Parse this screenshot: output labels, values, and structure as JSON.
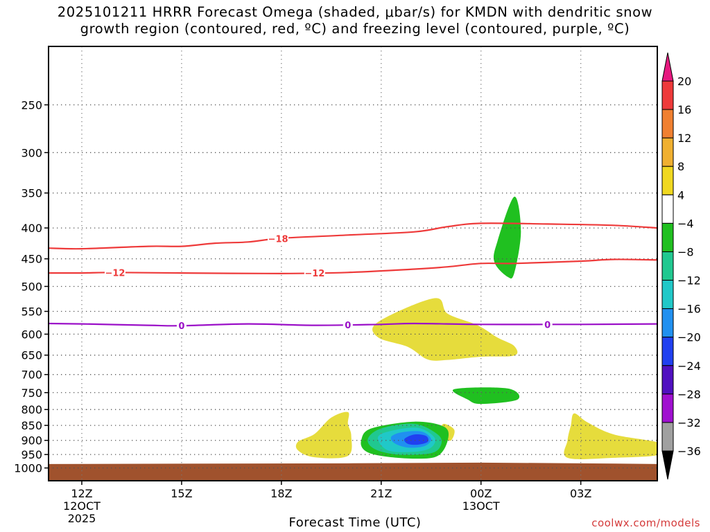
{
  "title_line1": "2025101211 HRRR Forecast Omega (shaded, μbar/s) for KMDN with dendritic snow",
  "title_line2": "growth region (contoured, red, ºC) and freezing level (contoured, purple, ºC)",
  "credit": "coolwx.com/models",
  "chart_data": {
    "type": "heatmap",
    "title": "2025101211 HRRR Forecast Omega (shaded, μbar/s) for KMDN with dendritic snow growth region (contoured, red, ºC) and freezing level (contoured, purple, ºC)",
    "xlabel": "Forecast Time (UTC)",
    "ylabel": "",
    "y_scale": "log-pressure (inverted)",
    "xlim_hours": [
      11.0,
      29.3
    ],
    "ylim_hpa": [
      1050,
      200
    ],
    "grid": true,
    "x_ticks": [
      {
        "hour": 12,
        "line1": "12Z",
        "line2": "12OCT",
        "line3": "2025"
      },
      {
        "hour": 15,
        "line1": "15Z",
        "line2": "",
        "line3": ""
      },
      {
        "hour": 18,
        "line1": "18Z",
        "line2": "",
        "line3": ""
      },
      {
        "hour": 21,
        "line1": "21Z",
        "line2": "",
        "line3": ""
      },
      {
        "hour": 24,
        "line1": "00Z",
        "line2": "13OCT",
        "line3": ""
      },
      {
        "hour": 27,
        "line1": "03Z",
        "line2": "",
        "line3": ""
      }
    ],
    "y_ticks": [
      250,
      300,
      350,
      400,
      450,
      500,
      550,
      600,
      650,
      700,
      750,
      800,
      850,
      900,
      950,
      1000
    ],
    "colorbar": {
      "labels": [
        "20",
        "16",
        "12",
        "8",
        "4",
        "−4",
        "−8",
        "−12",
        "−16",
        "−20",
        "−24",
        "−28",
        "−32",
        "−36"
      ],
      "colors_top_to_bottom": [
        "#e6197f",
        "#ee3a3a",
        "#f08030",
        "#f0b030",
        "#f0d820",
        "#ffffff",
        "#20c020",
        "#20c890",
        "#20c8c8",
        "#2090f0",
        "#2040f0",
        "#5010c0",
        "#a010d0",
        "#a0a0a0",
        "#000000"
      ]
    },
    "ground_color": "#a0522d",
    "contours": [
      {
        "name": "-18",
        "color": "#ee3a3a",
        "label": "−18",
        "points": [
          [
            11.0,
            432
          ],
          [
            12,
            433
          ],
          [
            14,
            429
          ],
          [
            15,
            429
          ],
          [
            16,
            424
          ],
          [
            17,
            422
          ],
          [
            18,
            416
          ],
          [
            20,
            411
          ],
          [
            22,
            406
          ],
          [
            23,
            398
          ],
          [
            24,
            393
          ],
          [
            26,
            394
          ],
          [
            28,
            396
          ],
          [
            29.3,
            400
          ]
        ]
      },
      {
        "name": "-12",
        "color": "#ee3a3a",
        "label": "−12",
        "points": [
          [
            11.0,
            475
          ],
          [
            12,
            475
          ],
          [
            13,
            474
          ],
          [
            15,
            475
          ],
          [
            18,
            476
          ],
          [
            20,
            474
          ],
          [
            22,
            468
          ],
          [
            23,
            464
          ],
          [
            24,
            458
          ],
          [
            25,
            458
          ],
          [
            27,
            454
          ],
          [
            28,
            451
          ],
          [
            29.3,
            452
          ]
        ]
      },
      {
        "name": "0",
        "color": "#9b10c8",
        "label": "0",
        "points": [
          [
            11.0,
            576
          ],
          [
            12,
            577
          ],
          [
            14,
            580
          ],
          [
            15,
            581
          ],
          [
            17,
            577
          ],
          [
            19,
            580
          ],
          [
            21,
            578
          ],
          [
            22,
            576
          ],
          [
            24,
            578
          ],
          [
            26,
            578
          ],
          [
            27,
            578
          ],
          [
            29.3,
            577
          ]
        ]
      }
    ],
    "omega_areas": [
      {
        "value_range": "4 to 8",
        "color": "#e6dc3c",
        "points": [
          [
            20.9,
            573
          ],
          [
            22.6,
            523
          ],
          [
            23.0,
            555
          ],
          [
            23.9,
            580
          ],
          [
            24.5,
            608
          ],
          [
            25.0,
            628
          ],
          [
            25.0,
            651
          ],
          [
            24.0,
            654
          ],
          [
            23.0,
            662
          ],
          [
            22.4,
            661
          ],
          [
            21.8,
            630
          ],
          [
            20.9,
            607
          ]
        ]
      },
      {
        "value_range": "4 to 8",
        "color": "#e6dc3c",
        "points": [
          [
            19.5,
            825
          ],
          [
            20.0,
            808
          ],
          [
            20.0,
            845
          ],
          [
            20.1,
            885
          ],
          [
            20.0,
            955
          ],
          [
            19.0,
            960
          ],
          [
            18.5,
            935
          ],
          [
            18.5,
            905
          ],
          [
            19.0,
            878
          ]
        ]
      },
      {
        "value_range": "4 to 8",
        "color": "#e6dc3c",
        "points": [
          [
            22.9,
            845
          ],
          [
            23.2,
            865
          ],
          [
            23.1,
            900
          ],
          [
            22.9,
            890
          ],
          [
            22.8,
            860
          ]
        ]
      },
      {
        "value_range": "4 to 8",
        "color": "#e6dc3c",
        "points": [
          [
            26.8,
            812
          ],
          [
            27.2,
            840
          ],
          [
            28.0,
            880
          ],
          [
            29.4,
            910
          ],
          [
            29.4,
            950
          ],
          [
            28.0,
            962
          ],
          [
            26.6,
            962
          ],
          [
            26.6,
            900
          ],
          [
            26.7,
            850
          ]
        ]
      },
      {
        "value_range": "-8 to -4",
        "color": "#20c020",
        "points": [
          [
            24.5,
            420
          ],
          [
            25.0,
            355
          ],
          [
            25.2,
            405
          ],
          [
            25.0,
            475
          ],
          [
            24.8,
            482
          ],
          [
            24.4,
            455
          ]
        ]
      },
      {
        "value_range": "-8 to -4",
        "color": "#20c020",
        "points": [
          [
            23.2,
            740
          ],
          [
            24.8,
            738
          ],
          [
            25.1,
            770
          ],
          [
            24.0,
            783
          ],
          [
            23.6,
            770
          ]
        ]
      },
      {
        "value_range": "-8 to -4",
        "color": "#20c020",
        "points": [
          [
            20.4,
            900
          ],
          [
            20.7,
            860
          ],
          [
            22.0,
            838
          ],
          [
            22.9,
            855
          ],
          [
            23.0,
            900
          ],
          [
            22.7,
            955
          ],
          [
            22.0,
            965
          ],
          [
            21.0,
            955
          ],
          [
            20.5,
            935
          ]
        ]
      },
      {
        "value_range": "-12 to -8",
        "color": "#20c890",
        "points": [
          [
            20.6,
            895
          ],
          [
            21.0,
            860
          ],
          [
            22.0,
            845
          ],
          [
            22.7,
            880
          ],
          [
            22.8,
            915
          ],
          [
            22.5,
            945
          ],
          [
            21.5,
            950
          ],
          [
            20.8,
            930
          ]
        ]
      },
      {
        "value_range": "-16 to -12",
        "color": "#20c8c8",
        "points": [
          [
            20.9,
            890
          ],
          [
            21.3,
            868
          ],
          [
            22.1,
            858
          ],
          [
            22.6,
            890
          ],
          [
            22.5,
            925
          ],
          [
            22.0,
            940
          ],
          [
            21.2,
            935
          ]
        ]
      },
      {
        "value_range": "-20 to -16",
        "color": "#2090f0",
        "points": [
          [
            21.3,
            888
          ],
          [
            21.6,
            873
          ],
          [
            22.2,
            870
          ],
          [
            22.5,
            895
          ],
          [
            22.3,
            920
          ],
          [
            21.8,
            925
          ],
          [
            21.4,
            910
          ]
        ]
      },
      {
        "value_range": "-24 to -20",
        "color": "#2040f0",
        "points": [
          [
            21.7,
            895
          ],
          [
            22.0,
            880
          ],
          [
            22.35,
            885
          ],
          [
            22.4,
            905
          ],
          [
            22.1,
            915
          ],
          [
            21.8,
            912
          ]
        ]
      }
    ]
  }
}
